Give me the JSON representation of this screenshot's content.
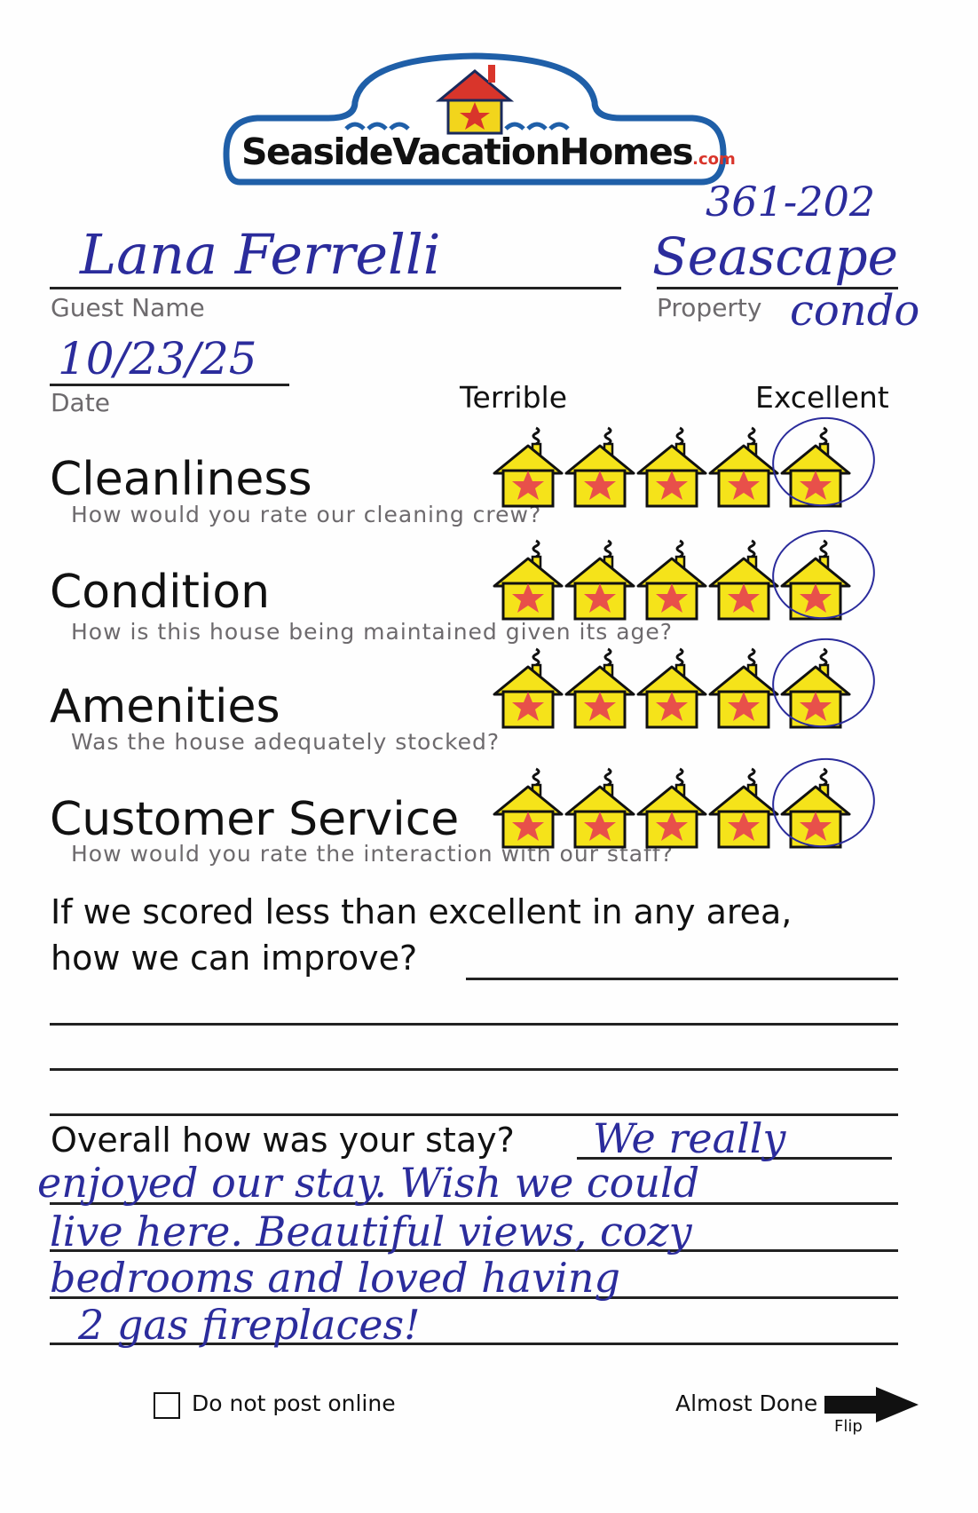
{
  "logo": {
    "brand": "SeasideVacationHomes",
    "suffix": ".com",
    "colors": {
      "navy": "#1a2a5c",
      "blue": "#1f5fa8",
      "red": "#d9352b",
      "yellow": "#f2d51c"
    }
  },
  "property_code": "361-202",
  "guest_name": {
    "label": "Guest Name",
    "value": "Lana Ferrelli"
  },
  "property": {
    "label": "Property",
    "value": "Seascape",
    "value_line2": "condo"
  },
  "date": {
    "label": "Date",
    "value": "10/23/25"
  },
  "scale": {
    "low_label": "Terrible",
    "high_label": "Excellent",
    "max": 5
  },
  "ratings": [
    {
      "title": "Cleanliness",
      "question": "How would you rate our cleaning crew?",
      "value": 5
    },
    {
      "title": "Condition",
      "question": "How is this house being maintained given its age?",
      "value": 5
    },
    {
      "title": "Amenities",
      "question": "Was the house adequately stocked?",
      "value": 5
    },
    {
      "title": "Customer Service",
      "question": "How would you rate the interaction with our staff?",
      "value": 5
    }
  ],
  "improve": {
    "line1": "If we scored less than excellent in any area,",
    "line2": "how we can improve?",
    "answer": ""
  },
  "overall": {
    "question": "Overall how was your stay?",
    "answer_lines": [
      "We really",
      "enjoyed our stay. Wish we could",
      "live here. Beautiful views, cozy",
      "bedrooms and loved having",
      "2 gas fireplaces!"
    ]
  },
  "footer": {
    "do_not_post_label": "Do not post online",
    "do_not_post_checked": false,
    "almost_done": "Almost Done",
    "flip": "Flip"
  },
  "colors": {
    "ink": "#2b2c9c",
    "house_yellow": "#f5e31a",
    "star_red": "#e8504a"
  }
}
